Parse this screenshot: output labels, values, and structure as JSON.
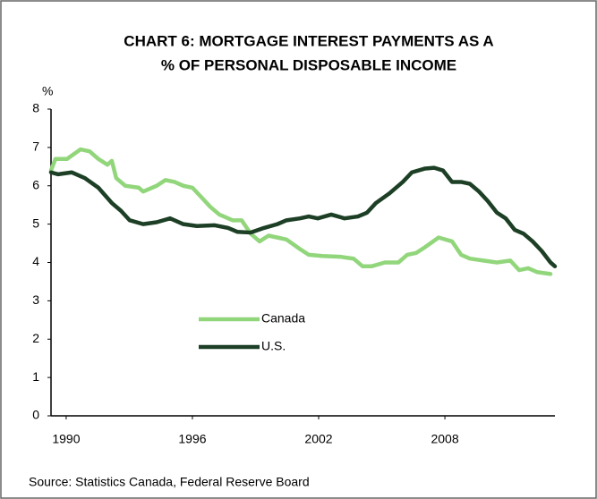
{
  "chart_data": {
    "type": "line",
    "title": [
      "CHART 6: MORTGAGE INTEREST PAYMENTS AS A",
      "% OF PERSONAL DISPOSABLE INCOME"
    ],
    "ylabel": "%",
    "source": "Source: Statistics Canada, Federal Reserve Board",
    "xlim": [
      1989.28,
      2013.23
    ],
    "xticks": [
      1990,
      1996,
      2002,
      2008
    ],
    "ylim": [
      0,
      8
    ],
    "yticks": [
      0,
      1,
      2,
      3,
      4,
      5,
      6,
      7,
      8
    ],
    "grid": false,
    "legend": "lower-center",
    "series": [
      {
        "name": "Canada",
        "color": "#92d67c",
        "x": [
          1989.28,
          1989.49,
          1990.04,
          1990.68,
          1991.11,
          1991.53,
          1991.96,
          1992.17,
          1992.38,
          1992.81,
          1993.45,
          1993.66,
          1994.3,
          1994.72,
          1995.15,
          1995.57,
          1996,
          1996.43,
          1996.85,
          1997.28,
          1997.91,
          1998.34,
          1998.77,
          1999.19,
          1999.62,
          2000.04,
          2000.47,
          2001.11,
          2001.53,
          2002.17,
          2003.02,
          2003.66,
          2004.09,
          2004.51,
          2005.15,
          2005.79,
          2006.21,
          2006.64,
          2007.06,
          2007.7,
          2008.34,
          2008.77,
          2009.19,
          2009.83,
          2010.47,
          2011.11,
          2011.53,
          2011.96,
          2012.38,
          2013.02
        ],
        "values": [
          6.4,
          6.7,
          6.7,
          6.95,
          6.9,
          6.7,
          6.55,
          6.65,
          6.2,
          6.0,
          5.95,
          5.85,
          6.0,
          6.15,
          6.1,
          6.0,
          5.95,
          5.7,
          5.45,
          5.25,
          5.1,
          5.1,
          4.75,
          4.55,
          4.7,
          4.65,
          4.6,
          4.35,
          4.2,
          4.17,
          4.15,
          4.1,
          3.9,
          3.9,
          4.0,
          4.0,
          4.2,
          4.25,
          4.4,
          4.65,
          4.55,
          4.2,
          4.1,
          4.05,
          4.0,
          4.05,
          3.8,
          3.85,
          3.75,
          3.7
        ]
      },
      {
        "name": "U.S.",
        "color": "#1c3f25",
        "x": [
          1989.28,
          1989.62,
          1990.26,
          1990.89,
          1991.53,
          1992.17,
          1992.6,
          1993.02,
          1993.66,
          1994.3,
          1994.94,
          1995.57,
          1996.21,
          1997.06,
          1997.7,
          1998.13,
          1998.77,
          1999.4,
          2000.04,
          2000.47,
          2001.11,
          2001.53,
          2001.96,
          2002.6,
          2003.23,
          2003.87,
          2004.3,
          2004.72,
          2005.36,
          2006.0,
          2006.43,
          2007.06,
          2007.49,
          2007.91,
          2008.34,
          2008.77,
          2009.19,
          2009.62,
          2010.04,
          2010.47,
          2010.89,
          2011.32,
          2011.74,
          2012.17,
          2012.6,
          2013.02,
          2013.23
        ],
        "values": [
          6.35,
          6.3,
          6.35,
          6.2,
          5.95,
          5.55,
          5.35,
          5.1,
          5.0,
          5.05,
          5.15,
          5.0,
          4.95,
          4.97,
          4.9,
          4.8,
          4.78,
          4.9,
          5.0,
          5.1,
          5.15,
          5.2,
          5.15,
          5.25,
          5.15,
          5.2,
          5.3,
          5.55,
          5.8,
          6.1,
          6.35,
          6.45,
          6.47,
          6.4,
          6.1,
          6.1,
          6.05,
          5.85,
          5.6,
          5.3,
          5.15,
          4.85,
          4.75,
          4.55,
          4.3,
          4.0,
          3.9
        ]
      }
    ]
  }
}
